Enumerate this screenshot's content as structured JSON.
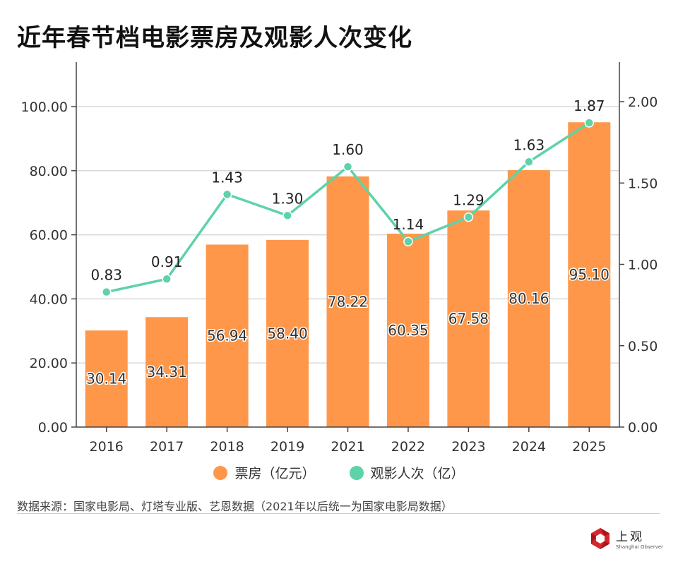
{
  "title": "近年春节档电影票房及观影人次变化",
  "colors": {
    "bar": "#FF974A",
    "line": "#5ED2A8",
    "grid": "#d9d9d9",
    "axis": "#444444",
    "logo_red": "#d3282f"
  },
  "legend": [
    {
      "label": "票房（亿元）",
      "color": "#FF974A"
    },
    {
      "label": "观影人次（亿）",
      "color": "#5ED2A8"
    }
  ],
  "source": "数据来源：国家电影局、灯塔专业版、艺恩数据（2021年以后统一为国家电影局数据）",
  "logo": {
    "cn": "上观",
    "en": "Shanghai Observer"
  },
  "chart_data": {
    "type": "bar",
    "title": "近年春节档电影票房及观影人次变化",
    "categories": [
      "2016",
      "2017",
      "2018",
      "2019",
      "2021",
      "2022",
      "2023",
      "2024",
      "2025"
    ],
    "series": [
      {
        "name": "票房（亿元）",
        "type": "bar",
        "axis": "left",
        "values": [
          30.14,
          34.31,
          56.94,
          58.4,
          78.22,
          60.35,
          67.58,
          80.16,
          95.1
        ],
        "labels": [
          "30.14",
          "34.31",
          "56.94",
          "58.40",
          "78.22",
          "60.35",
          "67.58",
          "80.16",
          "95.10"
        ]
      },
      {
        "name": "观影人次（亿）",
        "type": "line",
        "axis": "right",
        "values": [
          0.83,
          0.91,
          1.43,
          1.3,
          1.6,
          1.14,
          1.29,
          1.63,
          1.87
        ],
        "labels": [
          "0.83",
          "0.91",
          "1.43",
          "1.30",
          "1.60",
          "1.14",
          "1.29",
          "1.63",
          "1.87"
        ]
      }
    ],
    "y_left": {
      "ylim": [
        0,
        100
      ],
      "ticks": [
        "0.00",
        "20.00",
        "40.00",
        "60.00",
        "80.00",
        "100.00"
      ],
      "tick_values": [
        0,
        20,
        40,
        60,
        80,
        100
      ]
    },
    "y_right": {
      "ylim": [
        0,
        2.0
      ],
      "ticks": [
        "0.00",
        "0.50",
        "1.00",
        "1.50",
        "2.00"
      ],
      "tick_values": [
        0,
        0.5,
        1.0,
        1.5,
        2.0
      ]
    },
    "xlabel": "",
    "ylabel": "",
    "grid": true,
    "legend_position": "bottom-center"
  }
}
